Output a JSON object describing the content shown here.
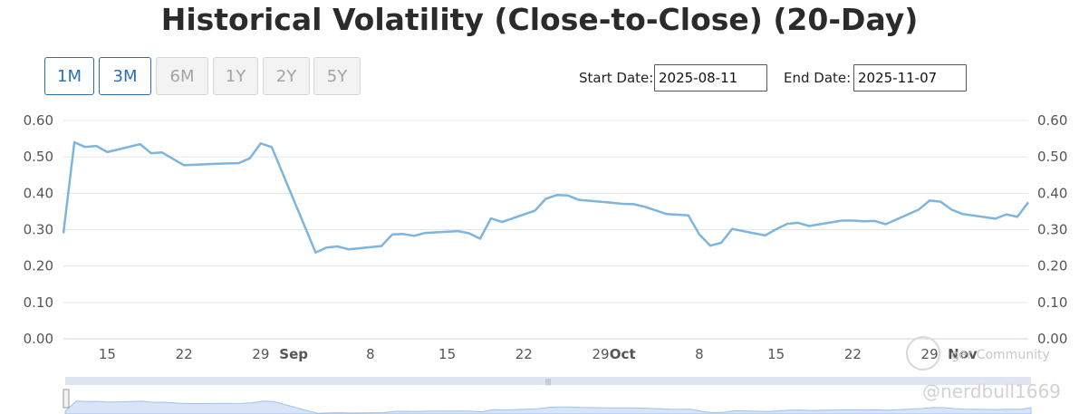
{
  "title": "Historical Volatility (Close-to-Close) (20-Day)",
  "range_buttons": [
    {
      "label": "1M",
      "active": true
    },
    {
      "label": "3M",
      "active": true
    },
    {
      "label": "6M",
      "active": false
    },
    {
      "label": "1Y",
      "active": false
    },
    {
      "label": "2Y",
      "active": false
    },
    {
      "label": "5Y",
      "active": false
    }
  ],
  "start_date": {
    "label": "Start Date:",
    "value": "2025-08-11"
  },
  "end_date": {
    "label": "End Date:",
    "value": "2025-11-07"
  },
  "watermark": {
    "community": "ger Community",
    "handle": "@nerdbull1669"
  },
  "colors": {
    "line": "#7cb5e0",
    "grid": "#e6e6e6",
    "navigator_fill": "#e5edfa",
    "active_button": "#2a6fb5"
  },
  "chart_data": {
    "type": "line",
    "x_axis": "date",
    "ylim": [
      0,
      0.6
    ],
    "y_ticks": [
      "0.00",
      "0.10",
      "0.20",
      "0.30",
      "0.40",
      "0.50",
      "0.60"
    ],
    "x_ticks": [
      {
        "date": "2025-08-15",
        "label": "15",
        "bold": false
      },
      {
        "date": "2025-08-22",
        "label": "22",
        "bold": false
      },
      {
        "date": "2025-08-29",
        "label": "29",
        "bold": false
      },
      {
        "date": "2025-09-01",
        "label": "Sep",
        "bold": true
      },
      {
        "date": "2025-09-08",
        "label": "8",
        "bold": false
      },
      {
        "date": "2025-09-15",
        "label": "15",
        "bold": false
      },
      {
        "date": "2025-09-22",
        "label": "22",
        "bold": false
      },
      {
        "date": "2025-09-29",
        "label": "29",
        "bold": false
      },
      {
        "date": "2025-10-01",
        "label": "Oct",
        "bold": true
      },
      {
        "date": "2025-10-08",
        "label": "8",
        "bold": false
      },
      {
        "date": "2025-10-15",
        "label": "15",
        "bold": false
      },
      {
        "date": "2025-10-22",
        "label": "22",
        "bold": false
      },
      {
        "date": "2025-10-29",
        "label": "29",
        "bold": false
      },
      {
        "date": "2025-11-01",
        "label": "Nov",
        "bold": true
      }
    ],
    "grid": true,
    "series": [
      {
        "points": [
          [
            "2025-08-11",
            0.29
          ],
          [
            "2025-08-12",
            0.54
          ],
          [
            "2025-08-13",
            0.527
          ],
          [
            "2025-08-14",
            0.53
          ],
          [
            "2025-08-15",
            0.513
          ],
          [
            "2025-08-18",
            0.535
          ],
          [
            "2025-08-19",
            0.51
          ],
          [
            "2025-08-20",
            0.512
          ],
          [
            "2025-08-22",
            0.477
          ],
          [
            "2025-08-25",
            0.481
          ],
          [
            "2025-08-27",
            0.483
          ],
          [
            "2025-08-28",
            0.496
          ],
          [
            "2025-08-29",
            0.537
          ],
          [
            "2025-08-30",
            0.527
          ],
          [
            "2025-09-03",
            0.237
          ],
          [
            "2025-09-04",
            0.251
          ],
          [
            "2025-09-05",
            0.254
          ],
          [
            "2025-09-06",
            0.246
          ],
          [
            "2025-09-09",
            0.255
          ],
          [
            "2025-09-10",
            0.287
          ],
          [
            "2025-09-11",
            0.288
          ],
          [
            "2025-09-12",
            0.283
          ],
          [
            "2025-09-13",
            0.291
          ],
          [
            "2025-09-16",
            0.296
          ],
          [
            "2025-09-17",
            0.29
          ],
          [
            "2025-09-18",
            0.275
          ],
          [
            "2025-09-19",
            0.331
          ],
          [
            "2025-09-20",
            0.321
          ],
          [
            "2025-09-23",
            0.352
          ],
          [
            "2025-09-24",
            0.385
          ],
          [
            "2025-09-25",
            0.395
          ],
          [
            "2025-09-26",
            0.394
          ],
          [
            "2025-09-27",
            0.382
          ],
          [
            "2025-09-30",
            0.374
          ],
          [
            "2025-10-01",
            0.371
          ],
          [
            "2025-10-02",
            0.37
          ],
          [
            "2025-10-03",
            0.363
          ],
          [
            "2025-10-04",
            0.353
          ],
          [
            "2025-10-05",
            0.343
          ],
          [
            "2025-10-07",
            0.339
          ],
          [
            "2025-10-08",
            0.287
          ],
          [
            "2025-10-09",
            0.256
          ],
          [
            "2025-10-10",
            0.264
          ],
          [
            "2025-10-11",
            0.302
          ],
          [
            "2025-10-14",
            0.284
          ],
          [
            "2025-10-15",
            0.301
          ],
          [
            "2025-10-16",
            0.316
          ],
          [
            "2025-10-17",
            0.319
          ],
          [
            "2025-10-18",
            0.31
          ],
          [
            "2025-10-21",
            0.325
          ],
          [
            "2025-10-22",
            0.325
          ],
          [
            "2025-10-23",
            0.323
          ],
          [
            "2025-10-24",
            0.324
          ],
          [
            "2025-10-25",
            0.315
          ],
          [
            "2025-10-28",
            0.355
          ],
          [
            "2025-10-29",
            0.38
          ],
          [
            "2025-10-30",
            0.377
          ],
          [
            "2025-10-31",
            0.355
          ],
          [
            "2025-11-01",
            0.343
          ],
          [
            "2025-11-04",
            0.33
          ],
          [
            "2025-11-05",
            0.342
          ],
          [
            "2025-11-06",
            0.335
          ],
          [
            "2025-11-07",
            0.375
          ]
        ]
      }
    ]
  }
}
